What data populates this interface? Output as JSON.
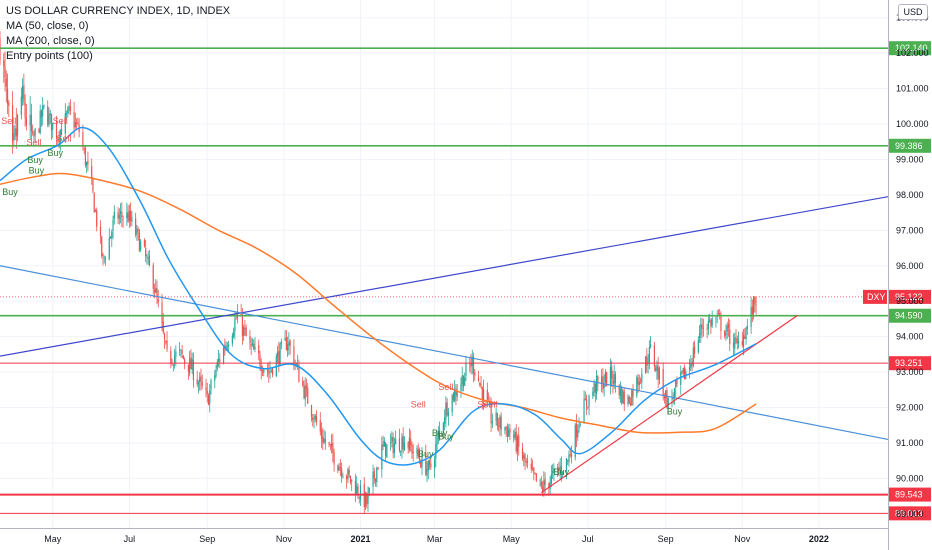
{
  "legend": {
    "title": "US DOLLAR CURRENCY INDEX, 1D, INDEX",
    "ma50": "MA (50, close, 0)",
    "ma200": "MA (200, close, 0)",
    "entry": "Entry points (100)"
  },
  "currency_button": "USD",
  "colors": {
    "up": "#26a69a",
    "down": "#ef5350",
    "ma50": "#2196f3",
    "ma200": "#ff7a2b",
    "green_level": "#4caf50",
    "red_level": "#f23645",
    "dxy": "#f23645"
  },
  "chart_data": {
    "type": "candlestick",
    "symbol": "DXY",
    "x_range": [
      "2020-03-20",
      "2022-02-25"
    ],
    "ylim": [
      88.6,
      103.5
    ],
    "y_ticks": [
      "103.000",
      "102.000",
      "101.000",
      "100.000",
      "99.000",
      "98.000",
      "97.000",
      "96.000",
      "95.000",
      "94.000",
      "93.000",
      "92.000",
      "91.000",
      "90.000",
      "89.000"
    ],
    "x_ticks": [
      {
        "label": "May",
        "date": "2020-05-01"
      },
      {
        "label": "Jul",
        "date": "2020-07-01"
      },
      {
        "label": "Sep",
        "date": "2020-09-01"
      },
      {
        "label": "Nov",
        "date": "2020-11-01"
      },
      {
        "label": "2021",
        "date": "2021-01-01"
      },
      {
        "label": "Mar",
        "date": "2021-03-01"
      },
      {
        "label": "May",
        "date": "2021-05-01"
      },
      {
        "label": "Jul",
        "date": "2021-07-01"
      },
      {
        "label": "Sep",
        "date": "2021-09-01"
      },
      {
        "label": "Nov",
        "date": "2021-11-01"
      },
      {
        "label": "2022",
        "date": "2022-01-01"
      }
    ],
    "price_path": [
      {
        "d": "2020-03-20",
        "v": 102.4
      },
      {
        "d": "2020-03-24",
        "v": 101.0
      },
      {
        "d": "2020-03-30",
        "v": 99.0
      },
      {
        "d": "2020-04-06",
        "v": 100.7
      },
      {
        "d": "2020-04-15",
        "v": 99.5
      },
      {
        "d": "2020-04-24",
        "v": 100.4
      },
      {
        "d": "2020-05-05",
        "v": 99.7
      },
      {
        "d": "2020-05-14",
        "v": 100.3
      },
      {
        "d": "2020-05-22",
        "v": 99.8
      },
      {
        "d": "2020-06-01",
        "v": 98.2
      },
      {
        "d": "2020-06-10",
        "v": 96.1
      },
      {
        "d": "2020-06-20",
        "v": 97.4
      },
      {
        "d": "2020-06-30",
        "v": 97.4
      },
      {
        "d": "2020-07-10",
        "v": 96.6
      },
      {
        "d": "2020-07-20",
        "v": 95.6
      },
      {
        "d": "2020-07-31",
        "v": 93.4
      },
      {
        "d": "2020-08-10",
        "v": 93.5
      },
      {
        "d": "2020-08-20",
        "v": 93.1
      },
      {
        "d": "2020-09-01",
        "v": 92.2
      },
      {
        "d": "2020-09-10",
        "v": 93.3
      },
      {
        "d": "2020-09-25",
        "v": 94.6
      },
      {
        "d": "2020-10-05",
        "v": 93.7
      },
      {
        "d": "2020-10-20",
        "v": 93.0
      },
      {
        "d": "2020-11-04",
        "v": 93.9
      },
      {
        "d": "2020-11-15",
        "v": 92.7
      },
      {
        "d": "2020-12-01",
        "v": 91.2
      },
      {
        "d": "2020-12-15",
        "v": 90.4
      },
      {
        "d": "2020-12-31",
        "v": 89.6
      },
      {
        "d": "2021-01-06",
        "v": 89.3
      },
      {
        "d": "2021-01-18",
        "v": 90.8
      },
      {
        "d": "2021-02-05",
        "v": 91.1
      },
      {
        "d": "2021-02-25",
        "v": 90.2
      },
      {
        "d": "2021-03-10",
        "v": 92.0
      },
      {
        "d": "2021-03-31",
        "v": 93.3
      },
      {
        "d": "2021-04-15",
        "v": 91.7
      },
      {
        "d": "2021-05-01",
        "v": 91.3
      },
      {
        "d": "2021-05-15",
        "v": 90.2
      },
      {
        "d": "2021-05-25",
        "v": 89.7
      },
      {
        "d": "2021-06-15",
        "v": 90.5
      },
      {
        "d": "2021-06-25",
        "v": 91.8
      },
      {
        "d": "2021-07-07",
        "v": 92.6
      },
      {
        "d": "2021-07-20",
        "v": 92.9
      },
      {
        "d": "2021-08-01",
        "v": 92.1
      },
      {
        "d": "2021-08-20",
        "v": 93.6
      },
      {
        "d": "2021-09-03",
        "v": 92.1
      },
      {
        "d": "2021-09-20",
        "v": 93.2
      },
      {
        "d": "2021-09-30",
        "v": 94.3
      },
      {
        "d": "2021-10-12",
        "v": 94.5
      },
      {
        "d": "2021-10-28",
        "v": 93.7
      },
      {
        "d": "2021-11-05",
        "v": 94.3
      },
      {
        "d": "2021-11-12",
        "v": 95.1
      }
    ],
    "ma50": [
      {
        "d": "2020-03-20",
        "v": 98.4
      },
      {
        "d": "2020-04-10",
        "v": 99.0
      },
      {
        "d": "2020-05-05",
        "v": 99.4
      },
      {
        "d": "2020-05-25",
        "v": 99.9
      },
      {
        "d": "2020-06-15",
        "v": 99.3
      },
      {
        "d": "2020-07-10",
        "v": 97.8
      },
      {
        "d": "2020-08-01",
        "v": 96.2
      },
      {
        "d": "2020-08-25",
        "v": 94.8
      },
      {
        "d": "2020-09-20",
        "v": 93.5
      },
      {
        "d": "2020-10-15",
        "v": 93.1
      },
      {
        "d": "2020-11-10",
        "v": 93.2
      },
      {
        "d": "2020-12-05",
        "v": 92.4
      },
      {
        "d": "2021-01-01",
        "v": 91.1
      },
      {
        "d": "2021-01-20",
        "v": 90.5
      },
      {
        "d": "2021-02-10",
        "v": 90.4
      },
      {
        "d": "2021-03-05",
        "v": 90.8
      },
      {
        "d": "2021-04-01",
        "v": 91.9
      },
      {
        "d": "2021-04-25",
        "v": 92.1
      },
      {
        "d": "2021-05-20",
        "v": 91.8
      },
      {
        "d": "2021-06-10",
        "v": 91.1
      },
      {
        "d": "2021-06-25",
        "v": 90.7
      },
      {
        "d": "2021-07-20",
        "v": 91.3
      },
      {
        "d": "2021-08-15",
        "v": 92.2
      },
      {
        "d": "2021-09-10",
        "v": 92.8
      },
      {
        "d": "2021-10-10",
        "v": 93.2
      },
      {
        "d": "2021-11-12",
        "v": 93.8
      }
    ],
    "ma200": [
      {
        "d": "2020-03-20",
        "v": 98.3
      },
      {
        "d": "2020-04-15",
        "v": 98.5
      },
      {
        "d": "2020-05-10",
        "v": 98.6
      },
      {
        "d": "2020-06-10",
        "v": 98.4
      },
      {
        "d": "2020-07-10",
        "v": 98.1
      },
      {
        "d": "2020-08-10",
        "v": 97.6
      },
      {
        "d": "2020-09-10",
        "v": 97.0
      },
      {
        "d": "2020-10-10",
        "v": 96.5
      },
      {
        "d": "2020-11-10",
        "v": 95.8
      },
      {
        "d": "2020-12-10",
        "v": 94.9
      },
      {
        "d": "2021-01-10",
        "v": 94.0
      },
      {
        "d": "2021-02-10",
        "v": 93.2
      },
      {
        "d": "2021-03-10",
        "v": 92.6
      },
      {
        "d": "2021-04-10",
        "v": 92.2
      },
      {
        "d": "2021-05-10",
        "v": 92.0
      },
      {
        "d": "2021-06-10",
        "v": 91.7
      },
      {
        "d": "2021-07-10",
        "v": 91.5
      },
      {
        "d": "2021-08-10",
        "v": 91.3
      },
      {
        "d": "2021-09-10",
        "v": 91.3
      },
      {
        "d": "2021-10-10",
        "v": 91.4
      },
      {
        "d": "2021-11-12",
        "v": 92.1
      }
    ],
    "horizontal_levels": [
      {
        "label": "102.140",
        "value": 102.14,
        "color": "#4caf50"
      },
      {
        "label": "99.386",
        "value": 99.386,
        "color": "#4caf50"
      },
      {
        "label": "94.590",
        "value": 94.59,
        "color": "#4caf50"
      },
      {
        "label": "93.251",
        "value": 93.251,
        "color": "#f23645"
      },
      {
        "label": "89.543",
        "value": 89.543,
        "color": "#f23645"
      },
      {
        "label": "89.013",
        "value": 89.013,
        "color": "#f23645"
      }
    ],
    "last_price": {
      "symbol": "DXY",
      "label": "95.122",
      "value": 95.122
    },
    "trend_lines": [
      {
        "name": "rising-purple",
        "color": "#3f48cc",
        "from": {
          "d": "2020-03-20",
          "v": 93.45
        },
        "to": {
          "d": "2022-02-25",
          "v": 97.95
        }
      },
      {
        "name": "falling-blue",
        "color": "#4a90d9",
        "from": {
          "d": "2020-03-20",
          "v": 96.0
        },
        "to": {
          "d": "2022-02-25",
          "v": 91.1
        }
      },
      {
        "name": "rising-support-red",
        "color": "#f23645",
        "from": {
          "d": "2021-05-25",
          "v": 89.6
        },
        "to": {
          "d": "2021-12-15",
          "v": 94.6
        }
      }
    ],
    "signals": [
      {
        "text": "Sell",
        "d": "2020-03-27",
        "v": 100.0
      },
      {
        "text": "Sell",
        "d": "2020-04-16",
        "v": 99.4
      },
      {
        "text": "Sell",
        "d": "2020-05-07",
        "v": 100.0
      },
      {
        "text": "Sell",
        "d": "2020-05-10",
        "v": 99.5
      },
      {
        "text": "Buy",
        "d": "2020-03-28",
        "v": 98.0
      },
      {
        "text": "Buy",
        "d": "2020-04-17",
        "v": 98.9
      },
      {
        "text": "Buy",
        "d": "2020-04-18",
        "v": 98.6
      },
      {
        "text": "Buy",
        "d": "2020-05-03",
        "v": 99.1
      },
      {
        "text": "Sell",
        "d": "2021-02-16",
        "v": 92.0
      },
      {
        "text": "Sell",
        "d": "2021-03-10",
        "v": 92.5
      },
      {
        "text": "Sell",
        "d": "2021-04-10",
        "v": 92.0
      },
      {
        "text": "Sell",
        "d": "2021-04-14",
        "v": 92.0
      },
      {
        "text": "Buy",
        "d": "2021-03-05",
        "v": 91.2
      },
      {
        "text": "Buy",
        "d": "2021-03-10",
        "v": 91.1
      },
      {
        "text": "Buy",
        "d": "2021-02-22",
        "v": 90.6
      },
      {
        "text": "Buy",
        "d": "2021-06-10",
        "v": 90.1
      },
      {
        "text": "Buy",
        "d": "2021-09-08",
        "v": 91.8
      }
    ]
  }
}
